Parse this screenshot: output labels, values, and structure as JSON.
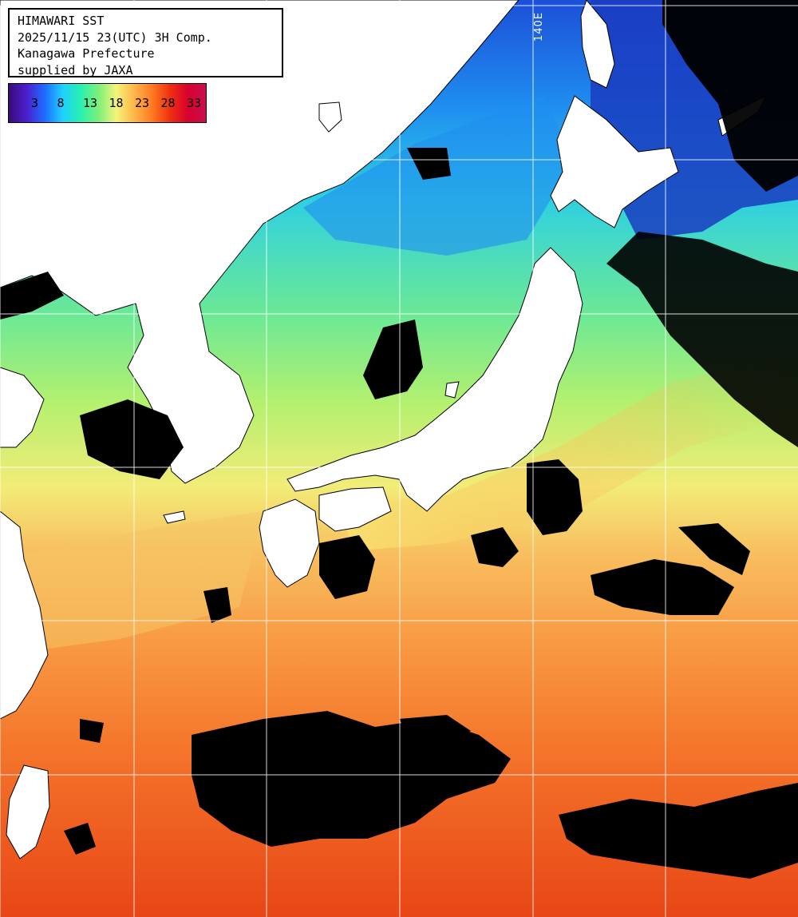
{
  "header": {
    "line1": "HIMAWARI SST",
    "line2": "2025/11/15 23(UTC) 3H Comp.",
    "line3": "Kanagawa Prefecture",
    "line4": "supplied by JAXA"
  },
  "legend": {
    "ticks": [
      "3",
      "8",
      "13",
      "18",
      "23",
      "28",
      "33"
    ],
    "colors": [
      "#3a0a78",
      "#4b1fd0",
      "#1e6cff",
      "#1fd0ff",
      "#27f0b0",
      "#7cf07a",
      "#f4f479",
      "#ffb64a",
      "#ff7a22",
      "#f03010",
      "#d80030",
      "#c8104e"
    ]
  },
  "map": {
    "lon_label": "140E",
    "grid_color": "#ffffff",
    "land_color": "#ffffff",
    "cloud_color": "#000000",
    "sst_colors": {
      "cold": "#2060e0",
      "cool": "#24c8f0",
      "mild": "#60e8a0",
      "temperate": "#b8f070",
      "warm": "#f8e070",
      "hot": "#f89040",
      "hotter": "#f46a22",
      "hottest": "#e84818"
    }
  }
}
